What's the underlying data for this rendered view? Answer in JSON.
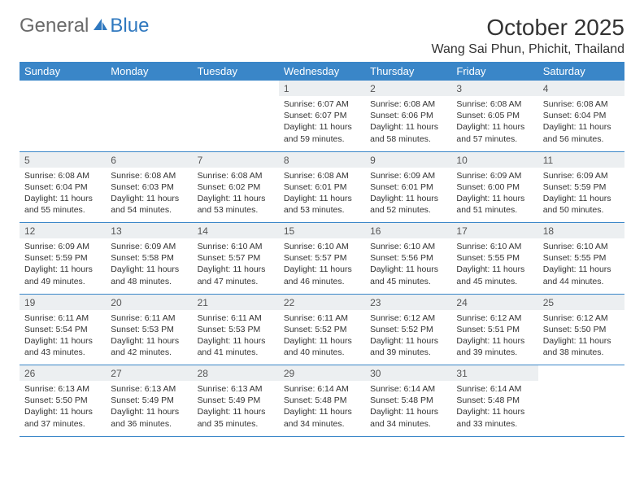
{
  "brand": {
    "part1": "General",
    "part2": "Blue"
  },
  "title": "October 2025",
  "location": "Wang Sai Phun, Phichit, Thailand",
  "colors": {
    "header_bg": "#3a86c8",
    "header_text": "#ffffff",
    "daynum_bg": "#eceff1",
    "border": "#3a86c8",
    "brand_gray": "#6a6a6a",
    "brand_blue": "#2f78bf"
  },
  "day_names": [
    "Sunday",
    "Monday",
    "Tuesday",
    "Wednesday",
    "Thursday",
    "Friday",
    "Saturday"
  ],
  "weeks": [
    [
      null,
      null,
      null,
      {
        "n": "1",
        "sr": "6:07 AM",
        "ss": "6:07 PM",
        "dl": "11 hours and 59 minutes."
      },
      {
        "n": "2",
        "sr": "6:08 AM",
        "ss": "6:06 PM",
        "dl": "11 hours and 58 minutes."
      },
      {
        "n": "3",
        "sr": "6:08 AM",
        "ss": "6:05 PM",
        "dl": "11 hours and 57 minutes."
      },
      {
        "n": "4",
        "sr": "6:08 AM",
        "ss": "6:04 PM",
        "dl": "11 hours and 56 minutes."
      }
    ],
    [
      {
        "n": "5",
        "sr": "6:08 AM",
        "ss": "6:04 PM",
        "dl": "11 hours and 55 minutes."
      },
      {
        "n": "6",
        "sr": "6:08 AM",
        "ss": "6:03 PM",
        "dl": "11 hours and 54 minutes."
      },
      {
        "n": "7",
        "sr": "6:08 AM",
        "ss": "6:02 PM",
        "dl": "11 hours and 53 minutes."
      },
      {
        "n": "8",
        "sr": "6:08 AM",
        "ss": "6:01 PM",
        "dl": "11 hours and 53 minutes."
      },
      {
        "n": "9",
        "sr": "6:09 AM",
        "ss": "6:01 PM",
        "dl": "11 hours and 52 minutes."
      },
      {
        "n": "10",
        "sr": "6:09 AM",
        "ss": "6:00 PM",
        "dl": "11 hours and 51 minutes."
      },
      {
        "n": "11",
        "sr": "6:09 AM",
        "ss": "5:59 PM",
        "dl": "11 hours and 50 minutes."
      }
    ],
    [
      {
        "n": "12",
        "sr": "6:09 AM",
        "ss": "5:59 PM",
        "dl": "11 hours and 49 minutes."
      },
      {
        "n": "13",
        "sr": "6:09 AM",
        "ss": "5:58 PM",
        "dl": "11 hours and 48 minutes."
      },
      {
        "n": "14",
        "sr": "6:10 AM",
        "ss": "5:57 PM",
        "dl": "11 hours and 47 minutes."
      },
      {
        "n": "15",
        "sr": "6:10 AM",
        "ss": "5:57 PM",
        "dl": "11 hours and 46 minutes."
      },
      {
        "n": "16",
        "sr": "6:10 AM",
        "ss": "5:56 PM",
        "dl": "11 hours and 45 minutes."
      },
      {
        "n": "17",
        "sr": "6:10 AM",
        "ss": "5:55 PM",
        "dl": "11 hours and 45 minutes."
      },
      {
        "n": "18",
        "sr": "6:10 AM",
        "ss": "5:55 PM",
        "dl": "11 hours and 44 minutes."
      }
    ],
    [
      {
        "n": "19",
        "sr": "6:11 AM",
        "ss": "5:54 PM",
        "dl": "11 hours and 43 minutes."
      },
      {
        "n": "20",
        "sr": "6:11 AM",
        "ss": "5:53 PM",
        "dl": "11 hours and 42 minutes."
      },
      {
        "n": "21",
        "sr": "6:11 AM",
        "ss": "5:53 PM",
        "dl": "11 hours and 41 minutes."
      },
      {
        "n": "22",
        "sr": "6:11 AM",
        "ss": "5:52 PM",
        "dl": "11 hours and 40 minutes."
      },
      {
        "n": "23",
        "sr": "6:12 AM",
        "ss": "5:52 PM",
        "dl": "11 hours and 39 minutes."
      },
      {
        "n": "24",
        "sr": "6:12 AM",
        "ss": "5:51 PM",
        "dl": "11 hours and 39 minutes."
      },
      {
        "n": "25",
        "sr": "6:12 AM",
        "ss": "5:50 PM",
        "dl": "11 hours and 38 minutes."
      }
    ],
    [
      {
        "n": "26",
        "sr": "6:13 AM",
        "ss": "5:50 PM",
        "dl": "11 hours and 37 minutes."
      },
      {
        "n": "27",
        "sr": "6:13 AM",
        "ss": "5:49 PM",
        "dl": "11 hours and 36 minutes."
      },
      {
        "n": "28",
        "sr": "6:13 AM",
        "ss": "5:49 PM",
        "dl": "11 hours and 35 minutes."
      },
      {
        "n": "29",
        "sr": "6:14 AM",
        "ss": "5:48 PM",
        "dl": "11 hours and 34 minutes."
      },
      {
        "n": "30",
        "sr": "6:14 AM",
        "ss": "5:48 PM",
        "dl": "11 hours and 34 minutes."
      },
      {
        "n": "31",
        "sr": "6:14 AM",
        "ss": "5:48 PM",
        "dl": "11 hours and 33 minutes."
      },
      null
    ]
  ],
  "labels": {
    "sunrise": "Sunrise:",
    "sunset": "Sunset:",
    "daylight": "Daylight:"
  }
}
